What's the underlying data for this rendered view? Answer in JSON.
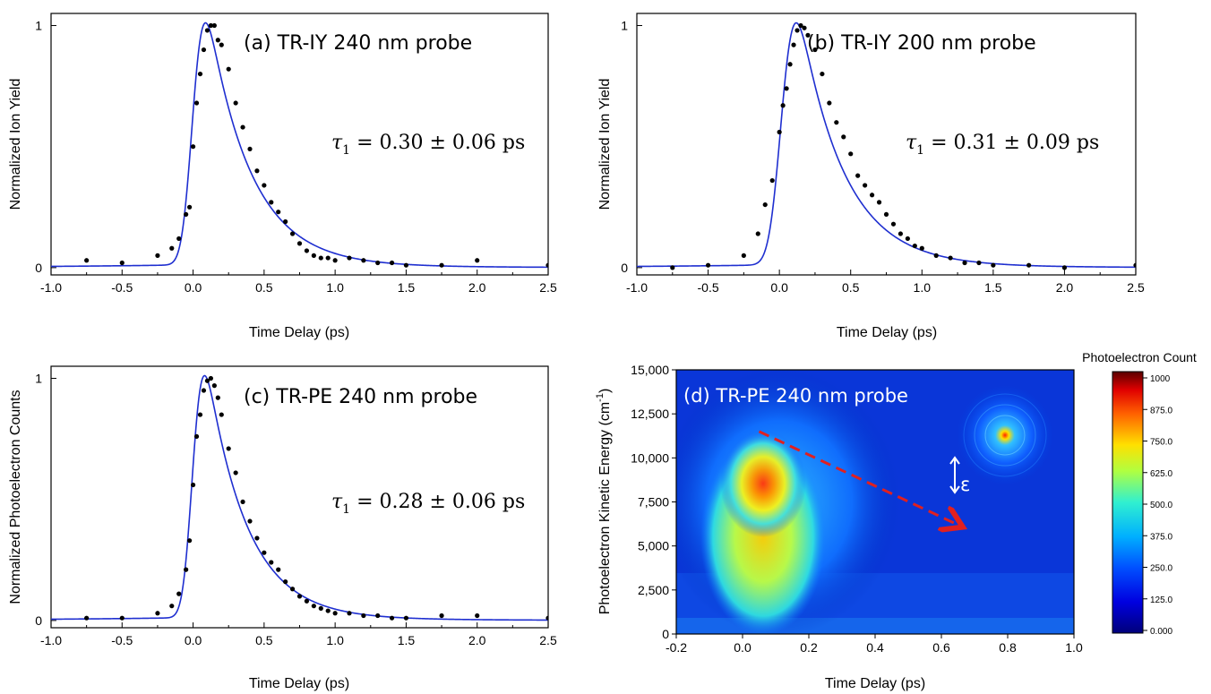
{
  "chart_data": [
    {
      "panel": "a",
      "type": "scatter",
      "title": "(a)  TR-IY 240 nm probe",
      "annotation": "τ1 = 0.30 ± 0.06 ps",
      "annotation_var": "τ",
      "annotation_sub": "1",
      "annotation_rest": " = 0.30 ± 0.06 ps",
      "xlabel": "Time Delay (ps)",
      "ylabel": "Normalized Ion Yield",
      "xlim": [
        -1.0,
        2.5
      ],
      "ylim": [
        -0.03,
        1.05
      ],
      "xticks": [
        "-1.0",
        "-0.5",
        "0.0",
        "0.5",
        "1.0",
        "1.5",
        "2.0",
        "2.5"
      ],
      "yticks": [
        "0",
        "1"
      ],
      "fit": {
        "t0": 0.0,
        "sigma": 0.06,
        "tau": 0.3,
        "peak_shift": 0.11
      },
      "points": {
        "x": [
          -0.75,
          -0.5,
          -0.25,
          -0.15,
          -0.1,
          -0.05,
          -0.025,
          0.0,
          0.025,
          0.05,
          0.075,
          0.1,
          0.125,
          0.15,
          0.175,
          0.2,
          0.25,
          0.3,
          0.35,
          0.4,
          0.45,
          0.5,
          0.55,
          0.6,
          0.65,
          0.7,
          0.75,
          0.8,
          0.85,
          0.9,
          0.95,
          1.0,
          1.1,
          1.2,
          1.3,
          1.4,
          1.5,
          1.75,
          2.0,
          2.5
        ],
        "y": [
          0.03,
          0.02,
          0.05,
          0.08,
          0.12,
          0.22,
          0.25,
          0.5,
          0.68,
          0.8,
          0.9,
          0.98,
          1.0,
          1.0,
          0.94,
          0.92,
          0.82,
          0.68,
          0.58,
          0.49,
          0.4,
          0.34,
          0.27,
          0.23,
          0.19,
          0.14,
          0.1,
          0.07,
          0.05,
          0.04,
          0.04,
          0.03,
          0.04,
          0.03,
          0.02,
          0.02,
          0.01,
          0.01,
          0.03,
          0.01
        ]
      }
    },
    {
      "panel": "b",
      "type": "scatter",
      "title": "(b)  TR-IY 200 nm probe",
      "annotation": "τ1 = 0.31 ± 0.09 ps",
      "annotation_var": "τ",
      "annotation_sub": "1",
      "annotation_rest": " = 0.31 ± 0.09 ps",
      "xlabel": "Time Delay (ps)",
      "ylabel": "Normalized Ion Yield",
      "xlim": [
        -1.0,
        2.5
      ],
      "ylim": [
        -0.03,
        1.05
      ],
      "xticks": [
        "-1.0",
        "-0.5",
        "0.0",
        "0.5",
        "1.0",
        "1.5",
        "2.0",
        "2.5"
      ],
      "yticks": [
        "0",
        "1"
      ],
      "fit": {
        "t0": 0.02,
        "sigma": 0.07,
        "tau": 0.31,
        "peak_shift": 0.13
      },
      "points": {
        "x": [
          -0.75,
          -0.5,
          -0.25,
          -0.15,
          -0.1,
          -0.05,
          0.0,
          0.025,
          0.05,
          0.075,
          0.1,
          0.125,
          0.15,
          0.175,
          0.2,
          0.25,
          0.3,
          0.35,
          0.4,
          0.45,
          0.5,
          0.55,
          0.6,
          0.65,
          0.7,
          0.75,
          0.8,
          0.85,
          0.9,
          0.95,
          1.0,
          1.1,
          1.2,
          1.3,
          1.4,
          1.5,
          1.75,
          2.0,
          2.5
        ],
        "y": [
          0.0,
          0.01,
          0.05,
          0.14,
          0.26,
          0.36,
          0.56,
          0.67,
          0.74,
          0.84,
          0.92,
          0.98,
          1.0,
          0.99,
          0.96,
          0.9,
          0.8,
          0.68,
          0.6,
          0.54,
          0.47,
          0.38,
          0.34,
          0.3,
          0.27,
          0.22,
          0.18,
          0.14,
          0.12,
          0.09,
          0.08,
          0.05,
          0.04,
          0.02,
          0.02,
          0.01,
          0.01,
          0.0,
          0.01
        ]
      }
    },
    {
      "panel": "c",
      "type": "scatter",
      "title": "(c)  TR-PE 240 nm probe",
      "annotation": "τ1 = 0.28 ± 0.06 ps",
      "annotation_var": "τ",
      "annotation_sub": "1",
      "annotation_rest": " = 0.28 ± 0.06 ps",
      "xlabel": "Time Delay (ps)",
      "ylabel": "Normalized Photoelectron Counts",
      "xlim": [
        -1.0,
        2.5
      ],
      "ylim": [
        -0.03,
        1.05
      ],
      "xticks": [
        "-1.0",
        "-0.5",
        "0.0",
        "0.5",
        "1.0",
        "1.5",
        "2.0",
        "2.5"
      ],
      "yticks": [
        "0",
        "1"
      ],
      "fit": {
        "t0": 0.0,
        "sigma": 0.055,
        "tau": 0.28,
        "peak_shift": 0.1
      },
      "points": {
        "x": [
          -0.75,
          -0.5,
          -0.25,
          -0.15,
          -0.1,
          -0.05,
          -0.025,
          0.0,
          0.025,
          0.05,
          0.075,
          0.1,
          0.125,
          0.15,
          0.175,
          0.2,
          0.25,
          0.3,
          0.35,
          0.4,
          0.45,
          0.5,
          0.55,
          0.6,
          0.65,
          0.7,
          0.75,
          0.8,
          0.85,
          0.9,
          0.95,
          1.0,
          1.1,
          1.2,
          1.3,
          1.4,
          1.5,
          1.75,
          2.0,
          2.5
        ],
        "y": [
          0.01,
          0.01,
          0.03,
          0.06,
          0.11,
          0.21,
          0.33,
          0.56,
          0.76,
          0.85,
          0.95,
          0.99,
          1.0,
          0.97,
          0.92,
          0.85,
          0.71,
          0.61,
          0.49,
          0.41,
          0.34,
          0.28,
          0.24,
          0.21,
          0.16,
          0.13,
          0.1,
          0.08,
          0.06,
          0.05,
          0.04,
          0.03,
          0.03,
          0.02,
          0.02,
          0.01,
          0.01,
          0.02,
          0.02,
          0.01
        ]
      }
    },
    {
      "panel": "d",
      "type": "heatmap",
      "title": "(d)  TR-PE 240 nm probe",
      "xlabel": "Time Delay (ps)",
      "ylabel": "Photoelectron Kinetic Energy (cm",
      "ylabel_sup": "-1",
      "ylabel_close": ")",
      "xlim": [
        -0.2,
        1.0
      ],
      "ylim": [
        0,
        15000
      ],
      "xticks": [
        "-0.2",
        "0.0",
        "0.2",
        "0.4",
        "0.6",
        "0.8",
        "1.0"
      ],
      "yticks": [
        "0",
        "2,500",
        "5,000",
        "7,500",
        "10,000",
        "12,500",
        "15,000"
      ],
      "colorbar": {
        "title": "Photoelectron Count",
        "range": [
          0,
          1000
        ],
        "ticks": [
          "0.000",
          "125.0",
          "250.0",
          "375.0",
          "500.0",
          "625.0",
          "750.0",
          "875.0",
          "1000"
        ]
      },
      "arrow": {
        "from": [
          0.05,
          11500
        ],
        "to": [
          0.65,
          6200
        ],
        "color": "#e02020"
      },
      "epsilon_label": "ε",
      "peak_region": {
        "x": [
          0.0,
          0.22
        ],
        "y": [
          500,
          11000
        ]
      }
    }
  ]
}
